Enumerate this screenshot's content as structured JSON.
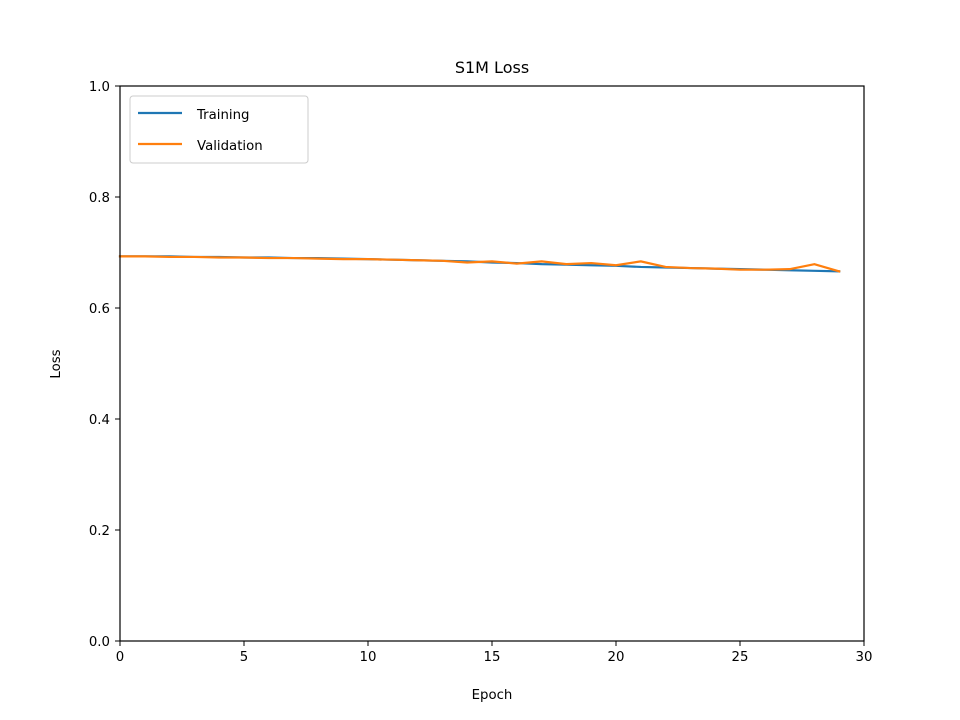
{
  "chart_data": {
    "type": "line",
    "title": "S1M Loss",
    "xlabel": "Epoch",
    "ylabel": "Loss",
    "xlim": [
      0,
      30
    ],
    "ylim": [
      0,
      1
    ],
    "xticks": [
      0,
      5,
      10,
      15,
      20,
      25,
      30
    ],
    "xtick_labels": [
      "0",
      "5",
      "10",
      "15",
      "20",
      "25",
      "30"
    ],
    "yticks": [
      0,
      0.2,
      0.4,
      0.6,
      0.8,
      1.0
    ],
    "ytick_labels": [
      "0.0",
      "0.2",
      "0.4",
      "0.6",
      "0.8",
      "1.0"
    ],
    "grid": false,
    "legend_position": "top-left",
    "x": [
      0,
      1,
      2,
      3,
      4,
      5,
      6,
      7,
      8,
      9,
      10,
      11,
      12,
      13,
      14,
      15,
      16,
      17,
      18,
      19,
      20,
      21,
      22,
      23,
      24,
      25,
      26,
      27,
      28,
      29
    ],
    "series": [
      {
        "name": "Training",
        "color": "#1f77b4",
        "values": [
          0.693,
          0.693,
          0.693,
          0.692,
          0.692,
          0.691,
          0.691,
          0.69,
          0.69,
          0.689,
          0.688,
          0.687,
          0.686,
          0.685,
          0.684,
          0.682,
          0.681,
          0.679,
          0.678,
          0.677,
          0.676,
          0.674,
          0.673,
          0.672,
          0.671,
          0.67,
          0.669,
          0.668,
          0.667,
          0.666
        ]
      },
      {
        "name": "Validation",
        "color": "#ff7f0e",
        "values": [
          0.693,
          0.693,
          0.692,
          0.692,
          0.691,
          0.691,
          0.69,
          0.69,
          0.689,
          0.688,
          0.688,
          0.687,
          0.686,
          0.685,
          0.682,
          0.684,
          0.68,
          0.684,
          0.679,
          0.681,
          0.677,
          0.684,
          0.674,
          0.672,
          0.671,
          0.669,
          0.669,
          0.67,
          0.679,
          0.666
        ]
      }
    ]
  }
}
